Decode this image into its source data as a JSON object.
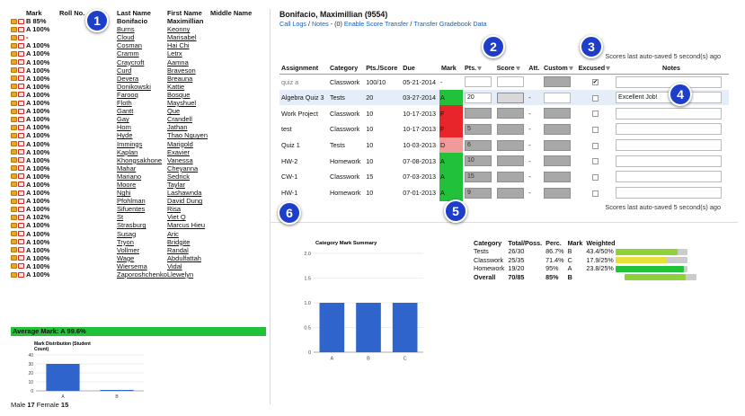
{
  "roster": {
    "headers": {
      "mark": "Mark",
      "roll": "Roll No.",
      "last": "Last Name",
      "first": "First Name",
      "middle": "Middle Name"
    },
    "rows": [
      {
        "mark": "B 85%",
        "last": "Bonifacio",
        "first": "Maximillian",
        "bold": true
      },
      {
        "mark": "A 100%",
        "last": "Burns",
        "first": "Keonny"
      },
      {
        "mark": "-",
        "last": "Cloud",
        "first": "Marisabel"
      },
      {
        "mark": "A 100%",
        "last": "Cosman",
        "first": "Hai Chi"
      },
      {
        "mark": "A 100%",
        "last": "Cramm",
        "first": "Letrx"
      },
      {
        "mark": "A 100%",
        "last": "Craycroft",
        "first": "Aamna"
      },
      {
        "mark": "A 100%",
        "last": "Curd",
        "first": "Braveson"
      },
      {
        "mark": "A 100%",
        "last": "Devera",
        "first": "Breauna"
      },
      {
        "mark": "A 100%",
        "last": "Donikowski",
        "first": "Kattie"
      },
      {
        "mark": "A 100%",
        "last": "Farooq",
        "first": "Bosque"
      },
      {
        "mark": "A 100%",
        "last": "Floth",
        "first": "Mayshuel"
      },
      {
        "mark": "A 100%",
        "last": "Gantt",
        "first": "Que"
      },
      {
        "mark": "A 100%",
        "last": "Gay",
        "first": "Crandell"
      },
      {
        "mark": "A 100%",
        "last": "Hom",
        "first": "Jathan"
      },
      {
        "mark": "A 100%",
        "last": "Hyde",
        "first": "Thao Nguyen"
      },
      {
        "mark": "A 100%",
        "last": "Immings",
        "first": "Marigold"
      },
      {
        "mark": "A 100%",
        "last": "Kaplan",
        "first": "Exavier"
      },
      {
        "mark": "A 100%",
        "last": "Khongsakhone",
        "first": "Vanessa"
      },
      {
        "mark": "A 100%",
        "last": "Mahar",
        "first": "Cheyanna"
      },
      {
        "mark": "A 100%",
        "last": "Mariano",
        "first": "Sedrick"
      },
      {
        "mark": "A 100%",
        "last": "Moore",
        "first": "Taylar"
      },
      {
        "mark": "A 100%",
        "last": "Nghi",
        "first": "Lashawnda"
      },
      {
        "mark": "A 100%",
        "last": "Pfohlman",
        "first": "David Dung"
      },
      {
        "mark": "A 100%",
        "last": "Sifuentes",
        "first": "Risa"
      },
      {
        "mark": "A 102%",
        "last": "St",
        "first": "Viet Q"
      },
      {
        "mark": "A 100%",
        "last": "Strasburg",
        "first": "Marcus Hieu"
      },
      {
        "mark": "A 100%",
        "last": "Susag",
        "first": "Aric"
      },
      {
        "mark": "A 100%",
        "last": "Tryon",
        "first": "Bridgite"
      },
      {
        "mark": "A 100%",
        "last": "Vollmer",
        "first": "Randal"
      },
      {
        "mark": "A 100%",
        "last": "Wage",
        "first": "Abdulfattah"
      },
      {
        "mark": "A 100%",
        "last": "Wiersema",
        "first": "Vidal"
      },
      {
        "mark": "A 100%",
        "last": "Zaporoshchenko",
        "first": "Llewelyn"
      }
    ],
    "average_mark": "Average Mark: A 99.6%",
    "gender_male_label": "Male",
    "gender_male_count": "17",
    "gender_female_label": "Female",
    "gender_female_count": "15"
  },
  "student": {
    "name": "Bonifacio, Maximillian (9554)",
    "links": {
      "call_logs": "Call Logs",
      "sep1": " / ",
      "notes": "Notes",
      "notes_count": " - (0) ",
      "enable_transfer": "Enable Score Transfer",
      "sep2": " / ",
      "transfer_data": "Transfer Gradebook Data"
    },
    "autosave_text": "Scores last auto-saved 5 second(s) ago"
  },
  "grades": {
    "headers": [
      "Assignment",
      "Category",
      "Pts./Score",
      "Due",
      "Mark",
      "Pts.",
      "Score",
      "Att.",
      "Custom",
      "Excused",
      "Notes"
    ],
    "rows": [
      {
        "assignment": "quiz a",
        "category": "Classwork",
        "pts_score": "100/10",
        "due": "05-21-2014",
        "mark": "-",
        "mark_color": "none",
        "pts": "",
        "pts_style": "white",
        "score": "",
        "att": "",
        "excused": true,
        "note": "",
        "muted": true
      },
      {
        "assignment": "Algebra Quiz 3",
        "category": "Tests",
        "pts_score": "20",
        "due": "03-27-2014",
        "mark": "A",
        "mark_color": "green",
        "pts": "20",
        "pts_style": "white",
        "score": "",
        "att": "-",
        "excused": false,
        "note": "Excellent Job!",
        "highlight": true
      },
      {
        "assignment": "Work Project",
        "category": "Classwork",
        "pts_score": "10",
        "due": "10-17-2013",
        "mark": "F",
        "mark_color": "red",
        "pts": "",
        "pts_style": "grey",
        "score": "",
        "att": "-",
        "excused": false,
        "note": ""
      },
      {
        "assignment": "test",
        "category": "Classwork",
        "pts_score": "10",
        "due": "10-17-2013",
        "mark": "F",
        "mark_color": "red",
        "pts": "5",
        "pts_style": "grey",
        "score": "",
        "att": "-",
        "excused": false,
        "note": ""
      },
      {
        "assignment": "Quiz 1",
        "category": "Tests",
        "pts_score": "10",
        "due": "10-03-2013",
        "mark": "D",
        "mark_color": "pink",
        "pts": "6",
        "pts_style": "grey",
        "score": "",
        "att": "-",
        "excused": false,
        "note": ""
      },
      {
        "assignment": "HW-2",
        "category": "Homework",
        "pts_score": "10",
        "due": "07-08-2013",
        "mark": "A",
        "mark_color": "green",
        "pts": "10",
        "pts_style": "grey",
        "score": "",
        "att": "-",
        "excused": false,
        "note": ""
      },
      {
        "assignment": "CW-1",
        "category": "Classwork",
        "pts_score": "15",
        "due": "07-03-2013",
        "mark": "A",
        "mark_color": "green",
        "pts": "15",
        "pts_style": "grey",
        "score": "",
        "att": "-",
        "excused": false,
        "note": ""
      },
      {
        "assignment": "HW-1",
        "category": "Homework",
        "pts_score": "10",
        "due": "07-01-2013",
        "mark": "A",
        "mark_color": "green",
        "pts": "9",
        "pts_style": "grey",
        "score": "",
        "att": "-",
        "excused": false,
        "note": ""
      }
    ]
  },
  "category_table": {
    "headers": [
      "Category",
      "Total/Poss.",
      "Perc.",
      "Mark",
      "Weighted"
    ],
    "rows": [
      {
        "category": "Tests",
        "total": "26/30",
        "perc": "86.7%",
        "mark": "B",
        "weighted": "43.4/50%",
        "fill": 0.868,
        "color": "#8fd13a"
      },
      {
        "category": "Classwork",
        "total": "25/35",
        "perc": "71.4%",
        "mark": "C",
        "weighted": "17.9/25%",
        "fill": 0.716,
        "color": "#e8e03a"
      },
      {
        "category": "Homework",
        "total": "19/20",
        "perc": "95%",
        "mark": "A",
        "weighted": "23.8/25%",
        "fill": 0.952,
        "color": "#21c23a"
      },
      {
        "category": "Overall",
        "total": "70/85",
        "perc": "85%",
        "mark": "B",
        "weighted": "",
        "fill": 0.85,
        "color": "#8fd13a"
      }
    ]
  },
  "chart_data": [
    {
      "type": "bar",
      "title": "Mark Distribution (Student Count)",
      "categories": [
        "A",
        "B"
      ],
      "values": [
        30,
        1
      ],
      "ylim": [
        0,
        40
      ],
      "yticks": [
        0,
        10,
        20,
        30,
        40
      ],
      "grid": true,
      "color": "#2f64cc"
    },
    {
      "type": "bar",
      "title": "Category Mark Summary",
      "categories": [
        "A",
        "B",
        "C"
      ],
      "values": [
        1.0,
        1.0,
        1.0
      ],
      "ylim": [
        0,
        2.0
      ],
      "yticks": [
        0,
        0.5,
        1.0,
        1.5,
        2.0
      ],
      "ytick_labels": [
        "0",
        "0.5",
        "1.0",
        "1.5",
        "2.0"
      ],
      "grid": true,
      "color": "#2f64cc"
    }
  ],
  "callouts": [
    "1",
    "2",
    "3",
    "4",
    "5",
    "6"
  ],
  "colors": {
    "accent_badge": "#1e3dc8",
    "link": "#1a5fb4",
    "green": "#21c23a",
    "red": "#e8252a",
    "pink": "#f09a9a"
  }
}
